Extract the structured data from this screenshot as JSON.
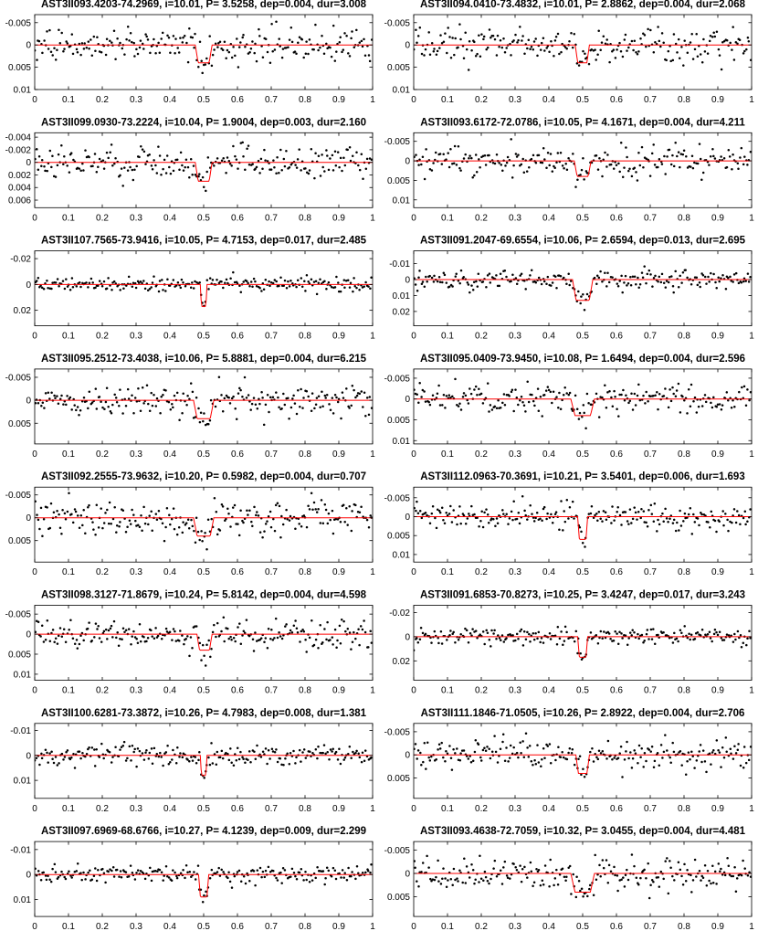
{
  "chart_data": [
    {
      "type": "scatter",
      "title": "AST3II093.4203-74.2969, i=10.01, P= 3.5258, dep=0.004, dur=3.008",
      "yticks": [
        "-0.005",
        "0",
        "0.005",
        "0.01"
      ],
      "ylim": [
        0.01,
        -0.0068
      ],
      "xlim": [
        0,
        1
      ],
      "xticks": [
        "0",
        "0.1",
        "0.2",
        "0.3",
        "0.4",
        "0.5",
        "0.6",
        "0.7",
        "0.8",
        "0.9",
        "1"
      ],
      "model": {
        "type": "box",
        "depth": 0.004,
        "x_start": 0.475,
        "x_end": 0.525
      },
      "scatter_noise": 0.0018
    },
    {
      "type": "scatter",
      "title": "AST3II094.0410-73.4832, i=10.01, P= 2.8862, dep=0.004, dur=2.068",
      "yticks": [
        "-0.005",
        "0",
        "0.005",
        "0.01"
      ],
      "ylim": [
        0.01,
        -0.0068
      ],
      "xlim": [
        0,
        1
      ],
      "xticks": [
        "0",
        "0.1",
        "0.2",
        "0.3",
        "0.4",
        "0.5",
        "0.6",
        "0.7",
        "0.8",
        "0.9",
        "1"
      ],
      "model": {
        "type": "box",
        "depth": 0.004,
        "x_start": 0.478,
        "x_end": 0.52
      },
      "scatter_noise": 0.0018
    },
    {
      "type": "scatter",
      "title": "AST3II099.0930-73.2224, i=10.04, P= 1.9004, dep=0.003, dur=2.160",
      "yticks": [
        "-0.004",
        "-0.002",
        "0",
        "0.002",
        "0.004",
        "0.006"
      ],
      "ylim": [
        0.0072,
        -0.0047
      ],
      "xlim": [
        0,
        1
      ],
      "xticks": [
        "0",
        "0.1",
        "0.2",
        "0.3",
        "0.4",
        "0.5",
        "0.6",
        "0.7",
        "0.8",
        "0.9",
        "1"
      ],
      "model": {
        "type": "box",
        "depth": 0.003,
        "x_start": 0.475,
        "x_end": 0.525
      },
      "scatter_noise": 0.0012
    },
    {
      "type": "scatter",
      "title": "AST3II093.6172-72.0786, i=10.05, P= 4.1671, dep=0.004, dur=4.211",
      "yticks": [
        "-0.005",
        "0",
        "0.005",
        "0.01"
      ],
      "ylim": [
        0.012,
        -0.0072
      ],
      "xlim": [
        0,
        1
      ],
      "xticks": [
        "0",
        "0.1",
        "0.2",
        "0.3",
        "0.4",
        "0.5",
        "0.6",
        "0.7",
        "0.8",
        "0.9",
        "1"
      ],
      "model": {
        "type": "box",
        "depth": 0.004,
        "x_start": 0.475,
        "x_end": 0.525
      },
      "scatter_noise": 0.0018
    },
    {
      "type": "scatter",
      "title": "AST3II107.7565-73.9416, i=10.05, P= 4.7153, dep=0.017, dur=2.485",
      "yticks": [
        "-0.02",
        "0",
        "0.02"
      ],
      "ylim": [
        0.032,
        -0.026
      ],
      "xlim": [
        0,
        1
      ],
      "xticks": [
        "0",
        "0.1",
        "0.2",
        "0.3",
        "0.4",
        "0.5",
        "0.6",
        "0.7",
        "0.8",
        "0.9",
        "1"
      ],
      "model": {
        "type": "box",
        "depth": 0.017,
        "x_start": 0.49,
        "x_end": 0.51
      },
      "scatter_noise": 0.0025
    },
    {
      "type": "scatter",
      "title": "AST3II091.2047-69.6554, i=10.06, P= 2.6594, dep=0.013, dur=2.695",
      "yticks": [
        "-0.01",
        "0",
        "0.01",
        "0.02"
      ],
      "ylim": [
        0.029,
        -0.018
      ],
      "xlim": [
        0,
        1
      ],
      "xticks": [
        "0",
        "0.1",
        "0.2",
        "0.3",
        "0.4",
        "0.5",
        "0.6",
        "0.7",
        "0.8",
        "0.9",
        "1"
      ],
      "model": {
        "type": "box",
        "depth": 0.013,
        "x_start": 0.47,
        "x_end": 0.53
      },
      "scatter_noise": 0.003
    },
    {
      "type": "scatter",
      "title": "AST3II095.2512-73.4038, i=10.06, P= 5.8881, dep=0.004, dur=6.215",
      "yticks": [
        "-0.005",
        "0",
        "0.005"
      ],
      "ylim": [
        0.0095,
        -0.0068
      ],
      "xlim": [
        0,
        1
      ],
      "xticks": [
        "0",
        "0.1",
        "0.2",
        "0.3",
        "0.4",
        "0.5",
        "0.6",
        "0.7",
        "0.8",
        "0.9",
        "1"
      ],
      "model": {
        "type": "box",
        "depth": 0.004,
        "x_start": 0.47,
        "x_end": 0.53
      },
      "scatter_noise": 0.0016
    },
    {
      "type": "scatter",
      "title": "AST3II095.0409-73.9450, i=10.08, P= 1.6494, dep=0.004, dur=2.596",
      "yticks": [
        "-0.005",
        "0",
        "0.005",
        "0.01"
      ],
      "ylim": [
        0.0108,
        -0.0072
      ],
      "xlim": [
        0,
        1
      ],
      "xticks": [
        "0",
        "0.1",
        "0.2",
        "0.3",
        "0.4",
        "0.5",
        "0.6",
        "0.7",
        "0.8",
        "0.9",
        "1"
      ],
      "model": {
        "type": "box",
        "depth": 0.004,
        "x_start": 0.465,
        "x_end": 0.535
      },
      "scatter_noise": 0.0017
    },
    {
      "type": "scatter",
      "title": "AST3II092.2555-73.9632, i=10.20, P= 0.5982, dep=0.004, dur=0.707",
      "yticks": [
        "-0.005",
        "0",
        "0.005"
      ],
      "ylim": [
        0.0097,
        -0.0067
      ],
      "xlim": [
        0,
        1
      ],
      "xticks": [
        "0",
        "0.1",
        "0.2",
        "0.3",
        "0.4",
        "0.5",
        "0.6",
        "0.7",
        "0.8",
        "0.9",
        "1"
      ],
      "model": {
        "type": "box",
        "depth": 0.004,
        "x_start": 0.47,
        "x_end": 0.53
      },
      "scatter_noise": 0.002
    },
    {
      "type": "scatter",
      "title": "AST3II112.0963-70.3691, i=10.21, P= 3.5401, dep=0.006, dur=1.693",
      "yticks": [
        "-0.005",
        "0",
        "0.005",
        "0.01"
      ],
      "ylim": [
        0.012,
        -0.0078
      ],
      "xlim": [
        0,
        1
      ],
      "xticks": [
        "0",
        "0.1",
        "0.2",
        "0.3",
        "0.4",
        "0.5",
        "0.6",
        "0.7",
        "0.8",
        "0.9",
        "1"
      ],
      "model": {
        "type": "box",
        "depth": 0.006,
        "x_start": 0.485,
        "x_end": 0.515
      },
      "scatter_noise": 0.0017
    },
    {
      "type": "scatter",
      "title": "AST3II098.3127-71.8679, i=10.24, P= 5.8142, dep=0.004, dur=4.598",
      "yticks": [
        "-0.005",
        "0",
        "0.005",
        "0.01"
      ],
      "ylim": [
        0.0115,
        -0.0072
      ],
      "xlim": [
        0,
        1
      ],
      "xticks": [
        "0",
        "0.1",
        "0.2",
        "0.3",
        "0.4",
        "0.5",
        "0.6",
        "0.7",
        "0.8",
        "0.9",
        "1"
      ],
      "model": {
        "type": "box",
        "depth": 0.004,
        "x_start": 0.48,
        "x_end": 0.525
      },
      "scatter_noise": 0.0018
    },
    {
      "type": "scatter",
      "title": "AST3II091.6853-70.8273, i=10.25, P= 3.4247, dep=0.017, dur=3.243",
      "yticks": [
        "-0.02",
        "0",
        "0.02"
      ],
      "ylim": [
        0.036,
        -0.026
      ],
      "xlim": [
        0,
        1
      ],
      "xticks": [
        "0",
        "0.1",
        "0.2",
        "0.3",
        "0.4",
        "0.5",
        "0.6",
        "0.7",
        "0.8",
        "0.9",
        "1"
      ],
      "model": {
        "type": "box",
        "depth": 0.017,
        "x_start": 0.485,
        "x_end": 0.515
      },
      "scatter_noise": 0.0033
    },
    {
      "type": "scatter",
      "title": "AST3II100.6281-73.3872, i=10.26, P= 4.7983, dep=0.008, dur=1.381",
      "yticks": [
        "-0.01",
        "0",
        "0.01"
      ],
      "ylim": [
        0.0172,
        -0.0128
      ],
      "xlim": [
        0,
        1
      ],
      "xticks": [
        "0",
        "0.1",
        "0.2",
        "0.3",
        "0.4",
        "0.5",
        "0.6",
        "0.7",
        "0.8",
        "0.9",
        "1"
      ],
      "model": {
        "type": "box",
        "depth": 0.008,
        "x_start": 0.49,
        "x_end": 0.51
      },
      "scatter_noise": 0.0022
    },
    {
      "type": "scatter",
      "title": "AST3II111.1846-71.0505, i=10.26, P= 2.8922, dep=0.004, dur=2.706",
      "yticks": [
        "-0.005",
        "0",
        "0.005"
      ],
      "ylim": [
        0.0094,
        -0.0068
      ],
      "xlim": [
        0,
        1
      ],
      "xticks": [
        "0",
        "0.1",
        "0.2",
        "0.3",
        "0.4",
        "0.5",
        "0.6",
        "0.7",
        "0.8",
        "0.9",
        "1"
      ],
      "model": {
        "type": "box",
        "depth": 0.004,
        "x_start": 0.48,
        "x_end": 0.52
      },
      "scatter_noise": 0.0017
    },
    {
      "type": "scatter",
      "title": "AST3II097.6969-68.6766, i=10.27, P= 4.1239, dep=0.009, dur=2.299",
      "yticks": [
        "-0.01",
        "0",
        "0.01"
      ],
      "ylim": [
        0.0168,
        -0.0132
      ],
      "xlim": [
        0,
        1
      ],
      "xticks": [
        "0",
        "0.1",
        "0.2",
        "0.3",
        "0.4",
        "0.5",
        "0.6",
        "0.7",
        "0.8",
        "0.9",
        "1"
      ],
      "model": {
        "type": "box",
        "depth": 0.009,
        "x_start": 0.485,
        "x_end": 0.515
      },
      "scatter_noise": 0.0018
    },
    {
      "type": "scatter",
      "title": "AST3II093.4638-72.7059, i=10.32, P= 3.0455, dep=0.004, dur=4.481",
      "yticks": [
        "-0.005",
        "0",
        "0.005"
      ],
      "ylim": [
        0.0092,
        -0.0068
      ],
      "xlim": [
        0,
        1
      ],
      "xticks": [
        "0",
        "0.1",
        "0.2",
        "0.3",
        "0.4",
        "0.5",
        "0.6",
        "0.7",
        "0.8",
        "0.9",
        "1"
      ],
      "model": {
        "type": "box",
        "depth": 0.004,
        "x_start": 0.465,
        "x_end": 0.535
      },
      "scatter_noise": 0.0017
    }
  ],
  "colors": {
    "model_line": "#ff0000",
    "points": "#000000",
    "axes": "#000000"
  }
}
